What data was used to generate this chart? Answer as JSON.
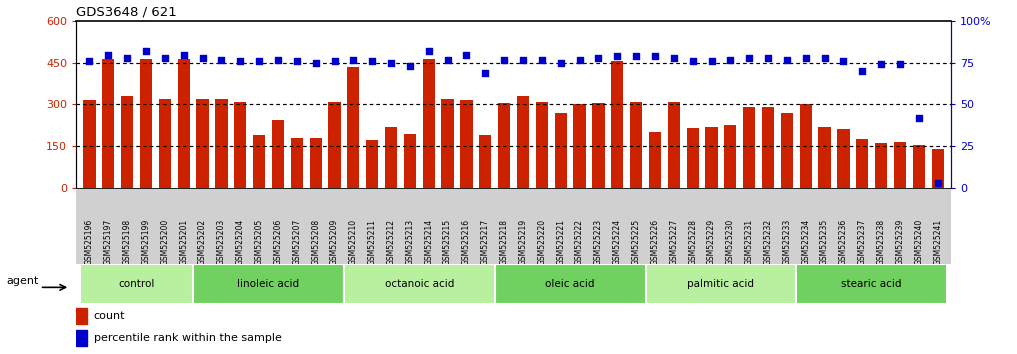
{
  "title": "GDS3648 / 621",
  "samples": [
    "GSM525196",
    "GSM525197",
    "GSM525198",
    "GSM525199",
    "GSM525200",
    "GSM525201",
    "GSM525202",
    "GSM525203",
    "GSM525204",
    "GSM525205",
    "GSM525206",
    "GSM525207",
    "GSM525208",
    "GSM525209",
    "GSM525210",
    "GSM525211",
    "GSM525212",
    "GSM525213",
    "GSM525214",
    "GSM525215",
    "GSM525216",
    "GSM525217",
    "GSM525218",
    "GSM525219",
    "GSM525220",
    "GSM525221",
    "GSM525222",
    "GSM525223",
    "GSM525224",
    "GSM525225",
    "GSM525226",
    "GSM525227",
    "GSM525228",
    "GSM525229",
    "GSM525230",
    "GSM525231",
    "GSM525232",
    "GSM525233",
    "GSM525234",
    "GSM525235",
    "GSM525236",
    "GSM525237",
    "GSM525238",
    "GSM525239",
    "GSM525240",
    "GSM525241"
  ],
  "counts": [
    315,
    465,
    330,
    465,
    320,
    465,
    320,
    320,
    310,
    190,
    245,
    180,
    180,
    310,
    435,
    170,
    220,
    195,
    465,
    320,
    315,
    190,
    305,
    330,
    310,
    270,
    300,
    305,
    455,
    310,
    200,
    310,
    215,
    220,
    225,
    290,
    290,
    270,
    300,
    220,
    210,
    175,
    160,
    165,
    155,
    140
  ],
  "percentile_ranks": [
    76,
    80,
    78,
    82,
    78,
    80,
    78,
    77,
    76,
    76,
    77,
    76,
    75,
    76,
    77,
    76,
    75,
    73,
    82,
    77,
    80,
    69,
    77,
    77,
    77,
    75,
    77,
    78,
    79,
    79,
    79,
    78,
    76,
    76,
    77,
    78,
    78,
    77,
    78,
    78,
    76,
    70,
    74,
    74,
    42,
    3
  ],
  "groups": [
    {
      "name": "control",
      "start": 0,
      "end": 5
    },
    {
      "name": "linoleic acid",
      "start": 6,
      "end": 13
    },
    {
      "name": "octanoic acid",
      "start": 14,
      "end": 21
    },
    {
      "name": "oleic acid",
      "start": 22,
      "end": 29
    },
    {
      "name": "palmitic acid",
      "start": 30,
      "end": 37
    },
    {
      "name": "stearic acid",
      "start": 38,
      "end": 45
    }
  ],
  "bar_color": "#cc2200",
  "dot_color": "#0000cc",
  "bar_ylim": [
    0,
    600
  ],
  "bar_yticks": [
    0,
    150,
    300,
    450,
    600
  ],
  "pct_ylim": [
    0,
    100
  ],
  "pct_yticks": [
    0,
    25,
    50,
    75,
    100
  ],
  "dotted_grid_values": [
    150,
    300,
    450
  ],
  "pct_dotted_grid_values": [
    25,
    50,
    75
  ],
  "group_light_color": "#b8f0a0",
  "group_dark_color": "#70d060",
  "xtick_bg": "#d0d0d0",
  "plot_bg": "#ffffff"
}
